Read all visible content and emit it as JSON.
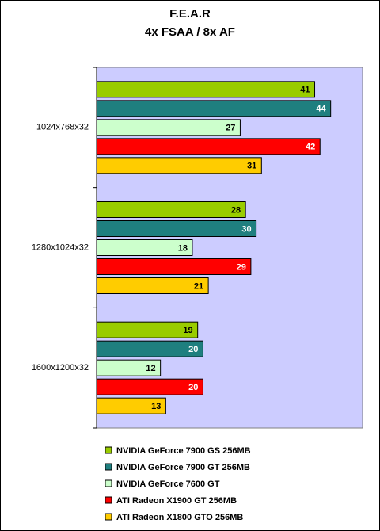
{
  "chart_data": {
    "type": "hbar",
    "title": "F.E.A.R",
    "subtitle": "4x FSAA / 8x AF",
    "categories": [
      "1024x768x32",
      "1280x1024x32",
      "1600x1200x32"
    ],
    "series": [
      {
        "name": "NVIDIA GeForce 7900 GS 256MB",
        "color": "#99cc00",
        "label_color": "#000000",
        "values": [
          41,
          28,
          19
        ]
      },
      {
        "name": "NVIDIA GeForce 7900 GT 256MB",
        "color": "#1f7f7f",
        "label_color": "#ffffff",
        "values": [
          44,
          30,
          20
        ]
      },
      {
        "name": "NVIDIA GeForce 7600 GT",
        "color": "#ccffcc",
        "label_color": "#000000",
        "values": [
          27,
          18,
          12
        ]
      },
      {
        "name": "ATI Radeon X1900 GT 256MB",
        "color": "#ff0000",
        "label_color": "#ffffff",
        "values": [
          42,
          29,
          20
        ]
      },
      {
        "name": "ATI Radeon X1800 GTO 256MB",
        "color": "#ffcc00",
        "label_color": "#000000",
        "values": [
          31,
          21,
          13
        ]
      }
    ],
    "xlim": [
      0,
      50
    ],
    "plot_background": "#ccccff"
  }
}
